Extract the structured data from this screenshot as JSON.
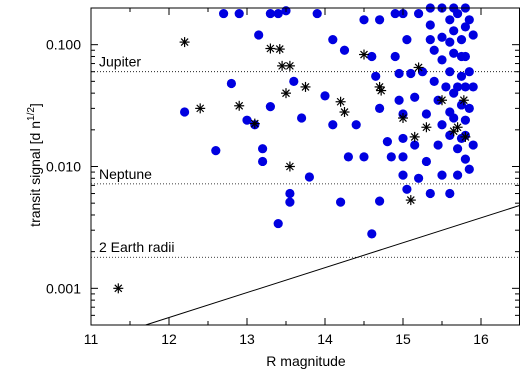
{
  "chart_data": {
    "type": "scatter",
    "xlabel": "R magnitude",
    "ylabel_main": "transit signal [d n",
    "ylabel_sup": "1/2",
    "ylabel_end": "]",
    "xlim": [
      11,
      16.5
    ],
    "ylim": [
      0.0005,
      0.2
    ],
    "y_scale": "log",
    "x_ticks": [
      {
        "value": 11,
        "label": "11"
      },
      {
        "value": 12,
        "label": "12"
      },
      {
        "value": 13,
        "label": "13"
      },
      {
        "value": 14,
        "label": "14"
      },
      {
        "value": 15,
        "label": "15"
      },
      {
        "value": 16,
        "label": "16"
      }
    ],
    "y_ticks": [
      {
        "value": 0.001,
        "label": "0.001"
      },
      {
        "value": 0.01,
        "label": "0.010"
      },
      {
        "value": 0.1,
        "label": "0.100"
      }
    ],
    "reference_lines": [
      {
        "label": "Jupiter",
        "y": 0.06
      },
      {
        "label": "Neptune",
        "y": 0.0072
      },
      {
        "label": "2 Earth radii",
        "y": 0.0018
      }
    ],
    "threshold_line": {
      "x": [
        11.7,
        16.5
      ],
      "y": [
        0.0005,
        0.0048
      ]
    },
    "colors": {
      "circles": "#0000e0",
      "stars": "#000000",
      "axes": "#000000"
    },
    "series": [
      {
        "marker": "circle",
        "points": [
          [
            12.2,
            0.028
          ],
          [
            12.6,
            0.0135
          ],
          [
            12.7,
            0.18
          ],
          [
            12.8,
            0.048
          ],
          [
            12.9,
            0.18
          ],
          [
            13.0,
            0.024
          ],
          [
            13.1,
            0.022
          ],
          [
            13.15,
            0.12
          ],
          [
            13.2,
            0.014
          ],
          [
            13.2,
            0.011
          ],
          [
            13.3,
            0.031
          ],
          [
            13.3,
            0.18
          ],
          [
            13.4,
            0.0034
          ],
          [
            13.4,
            0.18
          ],
          [
            13.55,
            0.006
          ],
          [
            13.55,
            0.0051
          ],
          [
            13.6,
            0.05
          ],
          [
            13.7,
            0.025
          ],
          [
            13.8,
            0.0082
          ],
          [
            13.9,
            0.18
          ],
          [
            13.5,
            0.19
          ],
          [
            14.0,
            0.038
          ],
          [
            14.1,
            0.11
          ],
          [
            14.2,
            0.0051
          ],
          [
            14.1,
            0.022
          ],
          [
            14.25,
            0.09
          ],
          [
            14.3,
            0.012
          ],
          [
            14.4,
            0.022
          ],
          [
            14.5,
            0.16
          ],
          [
            14.5,
            0.012
          ],
          [
            14.6,
            0.08
          ],
          [
            14.6,
            0.0028
          ],
          [
            14.7,
            0.0052
          ],
          [
            14.65,
            0.055
          ],
          [
            14.7,
            0.16
          ],
          [
            14.7,
            0.03
          ],
          [
            14.8,
            0.016
          ],
          [
            14.85,
            0.012
          ],
          [
            14.9,
            0.18
          ],
          [
            14.9,
            0.08
          ],
          [
            14.95,
            0.058
          ],
          [
            14.95,
            0.035
          ],
          [
            15.0,
            0.027
          ],
          [
            15.0,
            0.017
          ],
          [
            15.0,
            0.012
          ],
          [
            15.0,
            0.0085
          ],
          [
            15.0,
            0.18
          ],
          [
            15.05,
            0.11
          ],
          [
            15.05,
            0.0065
          ],
          [
            15.1,
            0.058
          ],
          [
            15.15,
            0.037
          ],
          [
            15.15,
            0.015
          ],
          [
            15.2,
            0.18
          ],
          [
            15.2,
            0.008
          ],
          [
            15.25,
            0.06
          ],
          [
            15.3,
            0.027
          ],
          [
            15.3,
            0.011
          ],
          [
            15.35,
            0.006
          ],
          [
            15.35,
            0.2
          ],
          [
            15.35,
            0.145
          ],
          [
            15.4,
            0.09
          ],
          [
            15.4,
            0.05
          ],
          [
            15.45,
            0.035
          ],
          [
            15.45,
            0.015
          ],
          [
            15.5,
            0.2
          ],
          [
            15.5,
            0.115
          ],
          [
            15.5,
            0.075
          ],
          [
            15.5,
            0.022
          ],
          [
            15.5,
            0.0085
          ],
          [
            15.55,
            0.045
          ],
          [
            15.6,
            0.16
          ],
          [
            15.6,
            0.06
          ],
          [
            15.6,
            0.028
          ],
          [
            15.6,
            0.018
          ],
          [
            15.6,
            0.006
          ],
          [
            15.65,
            0.2
          ],
          [
            15.65,
            0.13
          ],
          [
            15.65,
            0.085
          ],
          [
            15.65,
            0.04
          ],
          [
            15.65,
            0.025
          ],
          [
            15.7,
            0.014
          ],
          [
            15.7,
            0.0085
          ],
          [
            15.7,
            0.18
          ],
          [
            15.75,
            0.11
          ],
          [
            15.75,
            0.055
          ],
          [
            15.75,
            0.032
          ],
          [
            15.75,
            0.017
          ],
          [
            15.8,
            0.2
          ],
          [
            15.8,
            0.14
          ],
          [
            15.8,
            0.08
          ],
          [
            15.8,
            0.045
          ],
          [
            15.8,
            0.024
          ],
          [
            15.8,
            0.0115
          ],
          [
            15.85,
            0.16
          ],
          [
            15.85,
            0.06
          ],
          [
            15.85,
            0.03
          ],
          [
            15.85,
            0.0095
          ],
          [
            15.9,
            0.12
          ],
          [
            15.9,
            0.045
          ],
          [
            15.9,
            0.015
          ],
          [
            15.35,
            0.11
          ],
          [
            15.6,
            0.105
          ],
          [
            15.7,
            0.045
          ],
          [
            15.75,
            0.08
          ],
          [
            15.8,
            0.018
          ]
        ]
      },
      {
        "marker": "star",
        "points": [
          [
            11.35,
            0.001
          ],
          [
            12.2,
            0.105
          ],
          [
            12.4,
            0.03
          ],
          [
            12.9,
            0.0315
          ],
          [
            13.1,
            0.0225
          ],
          [
            13.3,
            0.093
          ],
          [
            13.42,
            0.092
          ],
          [
            13.45,
            0.067
          ],
          [
            13.55,
            0.067
          ],
          [
            13.5,
            0.04
          ],
          [
            13.55,
            0.01
          ],
          [
            13.75,
            0.045
          ],
          [
            14.2,
            0.034
          ],
          [
            14.25,
            0.028
          ],
          [
            14.5,
            0.083
          ],
          [
            14.7,
            0.045
          ],
          [
            14.72,
            0.042
          ],
          [
            15.0,
            0.025
          ],
          [
            15.1,
            0.0053
          ],
          [
            15.15,
            0.0175
          ],
          [
            15.2,
            0.065
          ],
          [
            15.3,
            0.021
          ],
          [
            15.5,
            0.035
          ],
          [
            15.65,
            0.0195
          ],
          [
            15.7,
            0.021
          ],
          [
            15.78,
            0.035
          ],
          [
            15.8,
            0.0175
          ]
        ]
      }
    ]
  }
}
